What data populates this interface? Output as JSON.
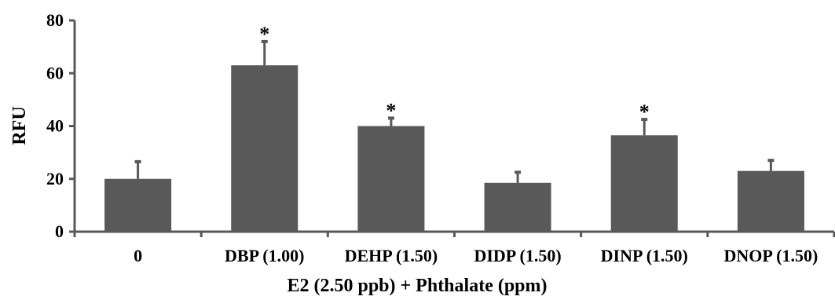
{
  "chart_data": {
    "type": "bar",
    "title": "",
    "xlabel": "E2 (2.50 ppb) + Phthalate (ppm)",
    "ylabel": "RFU",
    "ylim": [
      0,
      80
    ],
    "yticks": [
      "0",
      "20",
      "40",
      "60",
      "80"
    ],
    "categories": [
      "0",
      "DBP (1.00)",
      "DEHP (1.50)",
      "DIDP (1.50)",
      "DINP (1.50)",
      "DNOP (1.50)"
    ],
    "values": [
      20,
      63,
      40,
      18.5,
      36.5,
      23
    ],
    "error": [
      6.5,
      9,
      3,
      4,
      6,
      4
    ],
    "significance": [
      "",
      "*",
      "*",
      "",
      "*",
      ""
    ],
    "bar_color": "#595959",
    "grid": false,
    "legend": "none"
  }
}
